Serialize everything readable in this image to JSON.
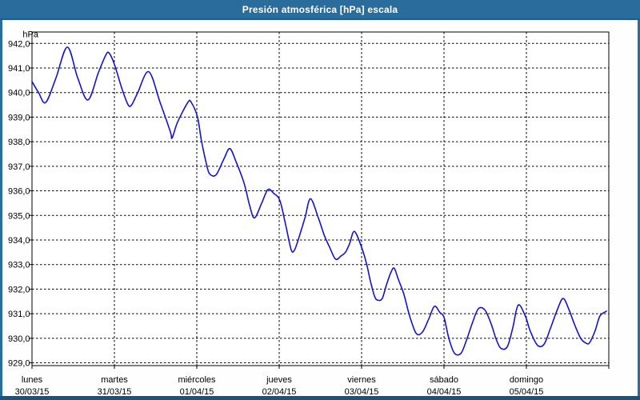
{
  "window": {
    "title": "Presión atmosférica [hPa] escala"
  },
  "colors": {
    "title_bar_bg": "#2a6c9c",
    "title_bar_border": "#1e5e8e",
    "frame_side": "#2a6c9c",
    "frame_bottom": "#1c527e",
    "plot_background": "#ffffff",
    "grid": "#000000",
    "axis_text": "#000000",
    "line": "#1414cc"
  },
  "chart_data": {
    "type": "line",
    "title": "Presión atmosférica [hPa] escala",
    "ylabel": "hPa",
    "ylim": [
      929.0,
      942.0
    ],
    "y_tick_step": 1.0,
    "y_tick_labels": [
      "942,0",
      "941,0",
      "940,0",
      "939,0",
      "938,0",
      "937,0",
      "936,0",
      "935,0",
      "934,0",
      "933,0",
      "932,0",
      "931,0",
      "930,0",
      "929,0"
    ],
    "grid": "dashed",
    "legend_position": "none",
    "x_axis_days": [
      {
        "name": "lunes",
        "date": "30/03/15"
      },
      {
        "name": "martes",
        "date": "31/03/15"
      },
      {
        "name": "miércoles",
        "date": "01/04/15"
      },
      {
        "name": "jueves",
        "date": "02/04/15"
      },
      {
        "name": "viernes",
        "date": "03/04/15"
      },
      {
        "name": "sábado",
        "date": "04/04/15"
      },
      {
        "name": "domingo",
        "date": "05/04/15"
      }
    ],
    "x_unit": "hours_since_monday_00h",
    "x_range_hours": [
      0,
      168
    ],
    "series": [
      {
        "name": "Presión atmosférica",
        "color": "#1414cc",
        "points": [
          [
            0,
            940.45
          ],
          [
            1.9,
            940.0
          ],
          [
            4,
            939.6
          ],
          [
            7,
            940.6
          ],
          [
            10.3,
            941.85
          ],
          [
            13.3,
            940.6
          ],
          [
            16.3,
            939.7
          ],
          [
            19.3,
            940.8
          ],
          [
            21.4,
            941.5
          ],
          [
            22.4,
            941.62
          ],
          [
            24,
            941.15
          ],
          [
            26.1,
            940.2
          ],
          [
            28,
            939.5
          ],
          [
            29.1,
            939.52
          ],
          [
            30.8,
            940.0
          ],
          [
            34,
            940.85
          ],
          [
            37.3,
            939.6
          ],
          [
            40.3,
            938.4
          ],
          [
            40.8,
            938.15
          ],
          [
            42.4,
            938.8
          ],
          [
            45.4,
            939.6
          ],
          [
            46.4,
            939.6
          ],
          [
            48.2,
            939.0
          ],
          [
            49.4,
            938.0
          ],
          [
            50.8,
            937.1
          ],
          [
            51.7,
            936.7
          ],
          [
            53.6,
            936.65
          ],
          [
            55.9,
            937.3
          ],
          [
            57.6,
            937.72
          ],
          [
            59.4,
            937.2
          ],
          [
            61.8,
            936.3
          ],
          [
            63.4,
            935.4
          ],
          [
            64.8,
            934.9
          ],
          [
            66.9,
            935.5
          ],
          [
            68.7,
            936.05
          ],
          [
            70.4,
            935.9
          ],
          [
            72.2,
            935.6
          ],
          [
            73.9,
            934.6
          ],
          [
            75.5,
            933.6
          ],
          [
            76.4,
            933.58
          ],
          [
            77.4,
            933.95
          ],
          [
            79.5,
            934.9
          ],
          [
            81.1,
            935.68
          ],
          [
            83.4,
            934.9
          ],
          [
            85.1,
            934.2
          ],
          [
            86.7,
            933.7
          ],
          [
            88.4,
            933.22
          ],
          [
            90,
            933.35
          ],
          [
            91.3,
            933.5
          ],
          [
            92.5,
            933.85
          ],
          [
            93.9,
            934.35
          ],
          [
            96,
            933.7
          ],
          [
            97.5,
            933.0
          ],
          [
            98.6,
            932.3
          ],
          [
            99.8,
            931.7
          ],
          [
            100.7,
            931.55
          ],
          [
            102,
            931.62
          ],
          [
            103.3,
            932.2
          ],
          [
            104.6,
            932.7
          ],
          [
            105.5,
            932.85
          ],
          [
            106.7,
            932.4
          ],
          [
            108.3,
            931.8
          ],
          [
            110,
            930.9
          ],
          [
            111.9,
            930.2
          ],
          [
            113.7,
            930.25
          ],
          [
            115.6,
            930.8
          ],
          [
            117.2,
            931.3
          ],
          [
            118.8,
            931.05
          ],
          [
            120,
            930.85
          ],
          [
            121.4,
            930.0
          ],
          [
            123,
            929.4
          ],
          [
            124.9,
            929.38
          ],
          [
            126.5,
            929.9
          ],
          [
            128.2,
            930.6
          ],
          [
            130,
            931.2
          ],
          [
            131.9,
            931.15
          ],
          [
            133.7,
            930.6
          ],
          [
            135.1,
            930.0
          ],
          [
            136.5,
            929.6
          ],
          [
            138.4,
            929.65
          ],
          [
            140,
            930.4
          ],
          [
            141.6,
            931.35
          ],
          [
            143.7,
            930.9
          ],
          [
            145.1,
            930.3
          ],
          [
            147.2,
            929.72
          ],
          [
            149.1,
            929.75
          ],
          [
            151,
            930.4
          ],
          [
            153.1,
            931.2
          ],
          [
            154.7,
            931.62
          ],
          [
            156.3,
            931.2
          ],
          [
            157.9,
            930.6
          ],
          [
            159.8,
            930.0
          ],
          [
            161.4,
            929.8
          ],
          [
            162.4,
            929.82
          ],
          [
            164,
            930.3
          ],
          [
            165.4,
            930.9
          ],
          [
            167.3,
            931.1
          ]
        ]
      }
    ]
  }
}
